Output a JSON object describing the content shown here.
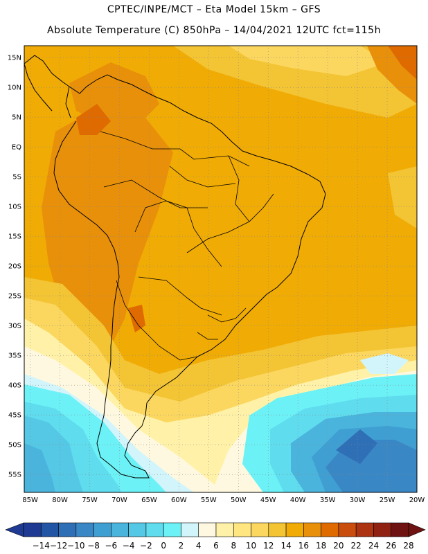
{
  "header": {
    "line1": "CPTEC/INPE/MCT –  Eta Model 15km – GFS",
    "line2": "Absolute Temperature (C) 850hPa – 14/04/2021 12UTC fct=115h"
  },
  "map": {
    "lon_range": [
      -86,
      -20
    ],
    "lat_range": [
      -58,
      17
    ],
    "lat_ticks": [
      "15N",
      "10N",
      "5N",
      "EQ",
      "5S",
      "10S",
      "15S",
      "20S",
      "25S",
      "30S",
      "35S",
      "40S",
      "45S",
      "50S",
      "55S"
    ],
    "lon_ticks": [
      "85W",
      "80W",
      "75W",
      "70W",
      "65W",
      "60W",
      "55W",
      "50W",
      "45W",
      "40W",
      "35W",
      "30W",
      "25W",
      "20W"
    ],
    "grid": "dotted",
    "land_border_color": "#000000"
  },
  "colorbar": {
    "labels": [
      "-14",
      "-12",
      "-10",
      "-8",
      "-6",
      "-4",
      "-2",
      "0",
      "2",
      "4",
      "6",
      "8",
      "10",
      "12",
      "14",
      "16",
      "18",
      "20",
      "22",
      "24",
      "26",
      "28"
    ],
    "colors": [
      "#1f3a93",
      "#2255a4",
      "#2f6fb5",
      "#3a87c5",
      "#3f9fd2",
      "#4ab4dc",
      "#55c8e6",
      "#5fdcee",
      "#6cf2f6",
      "#d2f5fb",
      "#fff8e0",
      "#fff2a8",
      "#ffe680",
      "#fbd760",
      "#f3c433",
      "#f0ab05",
      "#e8900a",
      "#de6a00",
      "#c94e0e",
      "#ad3412",
      "#8f2213",
      "#6e1212"
    ],
    "under_color": "#1f3a93",
    "over_color": "#6e1212"
  }
}
